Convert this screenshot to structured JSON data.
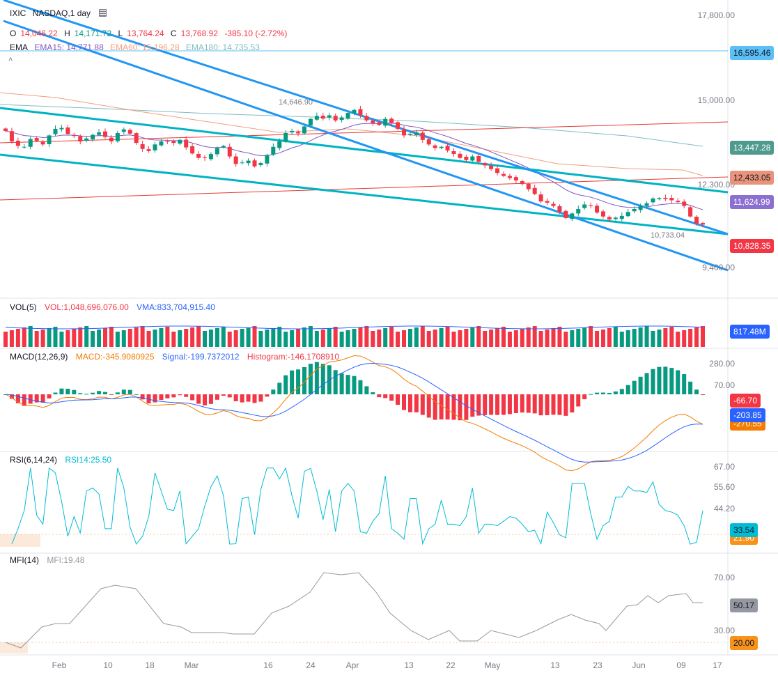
{
  "header": {
    "symbol": "IXIC",
    "title": "NASDAQ,1 day",
    "ohlc": {
      "o_label": "O",
      "o": "14,046.22",
      "h_label": "H",
      "h": "14,171.72",
      "l_label": "L",
      "l": "13,764.24",
      "c_label": "C",
      "c": "13,768.92",
      "change": "-385.10 (-2.72%)"
    },
    "ema": {
      "label": "EMA",
      "ema15": "EMA15: 14,771.88",
      "ema60": "EMA60: 15,196.28",
      "ema180": "EMA180: 14,735.53"
    }
  },
  "price_axis": {
    "ticks": [
      "17,800.00",
      "15,000.00",
      "12,300.00",
      "9,400.00"
    ],
    "badges": {
      "hline": "16,595.46",
      "ema180": "13,447.28",
      "ema60": "12,433.05",
      "ema15": "11,624.99",
      "close": "10,828.35"
    },
    "annotations": {
      "high": "14,646.90",
      "low": "10,733.04"
    }
  },
  "time_axis": [
    "Feb",
    "10",
    "18",
    "Mar",
    "16",
    "24",
    "Apr",
    "13",
    "22",
    "May",
    "13",
    "23",
    "Jun",
    "09",
    "17"
  ],
  "volume": {
    "title": "VOL(5)",
    "vol": "VOL:1,048,696,076.00",
    "vma": "VMA:833,704,915.40",
    "badge": "817.48M"
  },
  "macd": {
    "title": "MACD(12,26,9)",
    "macd": "MACD:-345.9080925",
    "signal": "Signal:-199.7372012",
    "hist": "Histogram:-146.1708910",
    "ticks": [
      "280.00",
      "70.00"
    ],
    "badges": {
      "hist": "-66.70",
      "signal": "-203.85",
      "macd": "-270.55"
    }
  },
  "rsi": {
    "title": "RSI(6,14,24)",
    "rsi14": "RSI14:25.50",
    "ticks": [
      "67.00",
      "55.60",
      "44.20"
    ],
    "badges": {
      "rsi": "33.54",
      "low": "21.90"
    }
  },
  "mfi": {
    "title": "MFI(14)",
    "mfi": "MFI:19.48",
    "ticks": [
      "70.00",
      "30.00"
    ],
    "badges": {
      "mfi": "50.17",
      "low": "20.00"
    }
  },
  "colors": {
    "up": "#089981",
    "down": "#f23645",
    "trend": "#2196f3",
    "channel": "#00b3c2",
    "ema15": "#7e57c2",
    "ema60": "#f29e80",
    "ema180": "#7fbcc0",
    "redline": "#e53935"
  },
  "chart_data": {
    "type": "candlestick",
    "symbol": "IXIC",
    "interval": "1 day",
    "price_ticks": [
      17800,
      15000,
      12300,
      9400
    ],
    "closes_approx": [
      13950,
      13600,
      13450,
      13420,
      13680,
      13620,
      13500,
      13800,
      14020,
      14050,
      13850,
      13780,
      13600,
      13700,
      13820,
      13900,
      13750,
      13600,
      13880,
      14000,
      13860,
      13550,
      13350,
      13280,
      13500,
      13600,
      13580,
      13550,
      13650,
      13400,
      13200,
      13050,
      13050,
      13180,
      13380,
      13450,
      13100,
      12850,
      12900,
      12960,
      12770,
      12880,
      13150,
      13420,
      13600,
      13880,
      13950,
      13870,
      14100,
      14350,
      14450,
      14360,
      14470,
      14300,
      14400,
      14550,
      14650,
      14480,
      14300,
      14200,
      14150,
      14350,
      14200,
      14020,
      13800,
      13850,
      13900,
      13650,
      13500,
      13380,
      13420,
      13300,
      13180,
      13050,
      12980,
      13100,
      12920,
      12800,
      12680,
      12550,
      12450,
      12380,
      12300,
      12180,
      12010,
      11850,
      11600,
      11560,
      11450,
      11260,
      11050,
      11200,
      11350,
      11500,
      11450,
      11230,
      11100,
      11000,
      11060,
      11120,
      11250,
      11350,
      11450,
      11540,
      11700,
      11710,
      11680,
      11640,
      11580,
      11450,
      11100,
      10860,
      10830
    ],
    "ema_series": [
      "EMA15",
      "EMA60",
      "EMA180"
    ],
    "indicators": [
      "VOL(5)",
      "MACD(12,26,9)",
      "RSI(6,14,24)",
      "MFI(14)"
    ]
  }
}
